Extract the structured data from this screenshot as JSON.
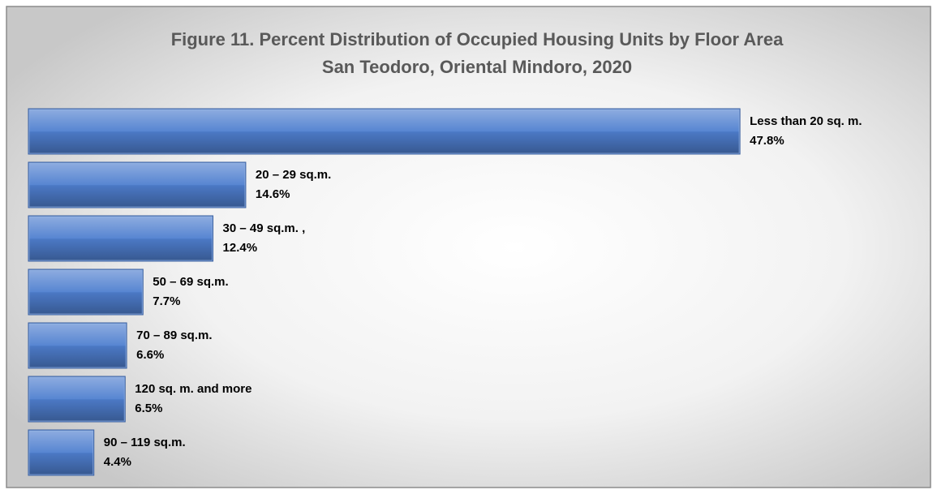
{
  "chart_data": {
    "type": "bar",
    "orientation": "horizontal",
    "title": "Figure 11. Percent Distribution of Occupied Housing Units by Floor Area",
    "subtitle": "San Teodoro, Oriental Mindoro, 2020",
    "categories": [
      "Less than 20 sq. m.",
      "20 – 29 sq.m.",
      "30 – 49 sq.m. ,",
      "50 – 69 sq.m.",
      "70 – 89 sq.m.",
      "120 sq. m. and more",
      "90 – 119 sq.m."
    ],
    "values": [
      47.8,
      14.6,
      12.4,
      7.7,
      6.6,
      6.5,
      4.4
    ],
    "value_labels": [
      "47.8%",
      "14.6%",
      "12.4%",
      "7.7%",
      "6.6%",
      "6.5%",
      "4.4%"
    ],
    "color": "#4f7fcf"
  }
}
